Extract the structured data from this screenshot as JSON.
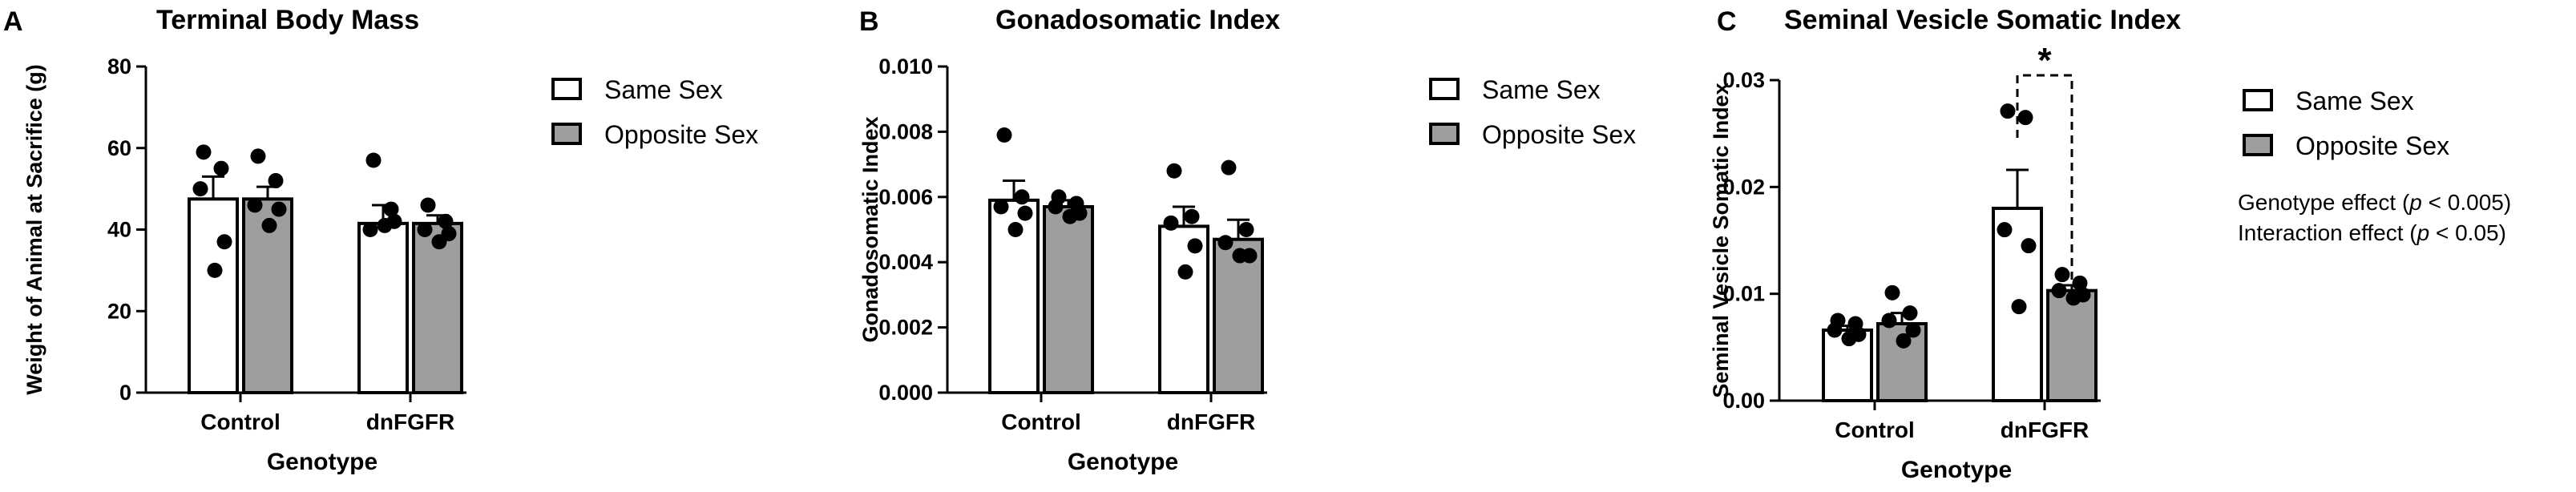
{
  "chart_data": [
    {
      "type": "bar",
      "panel_label": "A",
      "title": "Terminal Body Mass",
      "xlabel": "Genotype",
      "ylabel": "Weight of Animal at Sacrifice (g)",
      "categories": [
        "Control",
        "dnFGFR"
      ],
      "ylim": [
        0,
        80
      ],
      "yticks": [
        "0",
        "20",
        "40",
        "60",
        "80"
      ],
      "ytick_values": [
        0,
        20,
        40,
        60,
        80
      ],
      "series": [
        {
          "name": "Same Sex",
          "color": "#ffffff",
          "values": [
            47.5,
            41.5
          ],
          "sem": [
            5.5,
            4.5
          ],
          "points": [
            [
              59,
              55,
              50,
              37,
              30
            ],
            [
              57,
              45,
              40,
              42,
              41
            ]
          ]
        },
        {
          "name": "Opposite Sex",
          "color": "#9e9e9e",
          "values": [
            47.5,
            41.5
          ],
          "sem": [
            3.0,
            2.0
          ],
          "points": [
            [
              58,
              52,
              46,
              45,
              41
            ],
            [
              46,
              42,
              40,
              39,
              37
            ]
          ]
        }
      ],
      "legend_position": "right",
      "annotations": []
    },
    {
      "type": "bar",
      "panel_label": "B",
      "title": "Gonadosomatic Index",
      "xlabel": "Genotype",
      "ylabel": "Gonadosomatic  Index",
      "categories": [
        "Control",
        "dnFGFR"
      ],
      "ylim": [
        0,
        0.01
      ],
      "yticks": [
        "0.000",
        "0.002",
        "0.004",
        "0.006",
        "0.008",
        "0.010"
      ],
      "ytick_values": [
        0,
        0.002,
        0.004,
        0.006,
        0.008,
        0.01
      ],
      "series": [
        {
          "name": "Same Sex",
          "color": "#ffffff",
          "values": [
            0.0059,
            0.0051
          ],
          "sem": [
            0.0006,
            0.0006
          ],
          "points": [
            [
              0.0079,
              0.006,
              0.0057,
              0.0055,
              0.005
            ],
            [
              0.0068,
              0.0054,
              0.0052,
              0.0045,
              0.0037
            ]
          ]
        },
        {
          "name": "Opposite Sex",
          "color": "#9e9e9e",
          "values": [
            0.0057,
            0.0047
          ],
          "sem": [
            0.0002,
            0.0006
          ],
          "points": [
            [
              0.006,
              0.0058,
              0.0057,
              0.0055,
              0.0054
            ],
            [
              0.0069,
              0.005,
              0.0046,
              0.0042,
              0.0042
            ]
          ]
        }
      ],
      "legend_position": "right",
      "annotations": []
    },
    {
      "type": "bar",
      "panel_label": "C",
      "title": "Seminal Vesicle Somatic Index",
      "xlabel": "Genotype",
      "ylabel": "Seminal  Vesicle Somatic Index",
      "categories": [
        "Control",
        "dnFGFR"
      ],
      "ylim": [
        0,
        0.03
      ],
      "yticks": [
        "0.00",
        "0.01",
        "0.02",
        "0.03"
      ],
      "ytick_values": [
        0,
        0.01,
        0.02,
        0.03
      ],
      "series": [
        {
          "name": "Same Sex",
          "color": "#ffffff",
          "values": [
            0.0066,
            0.018
          ],
          "sem": [
            0.0004,
            0.0036
          ],
          "points": [
            [
              0.0075,
              0.0072,
              0.0066,
              0.0062,
              0.0058
            ],
            [
              0.0271,
              0.0265,
              0.016,
              0.0145,
              0.0088
            ]
          ]
        },
        {
          "name": "Opposite Sex",
          "color": "#9e9e9e",
          "values": [
            0.0072,
            0.0103
          ],
          "sem": [
            0.001,
            0.0005
          ],
          "points": [
            [
              0.0101,
              0.0082,
              0.0075,
              0.0066,
              0.0056
            ],
            [
              0.0118,
              0.011,
              0.0103,
              0.0099,
              0.0096
            ]
          ]
        }
      ],
      "legend_position": "right",
      "significance": {
        "symbol": "*",
        "between": "dnFGFR Same Sex vs Opposite Sex"
      },
      "notes": [
        {
          "pre": "Genotype effect (",
          "italic": "p",
          "post": " < 0.005)"
        },
        {
          "pre": "Interaction effect (",
          "italic": "p",
          "post": " < 0.05)"
        }
      ]
    }
  ]
}
